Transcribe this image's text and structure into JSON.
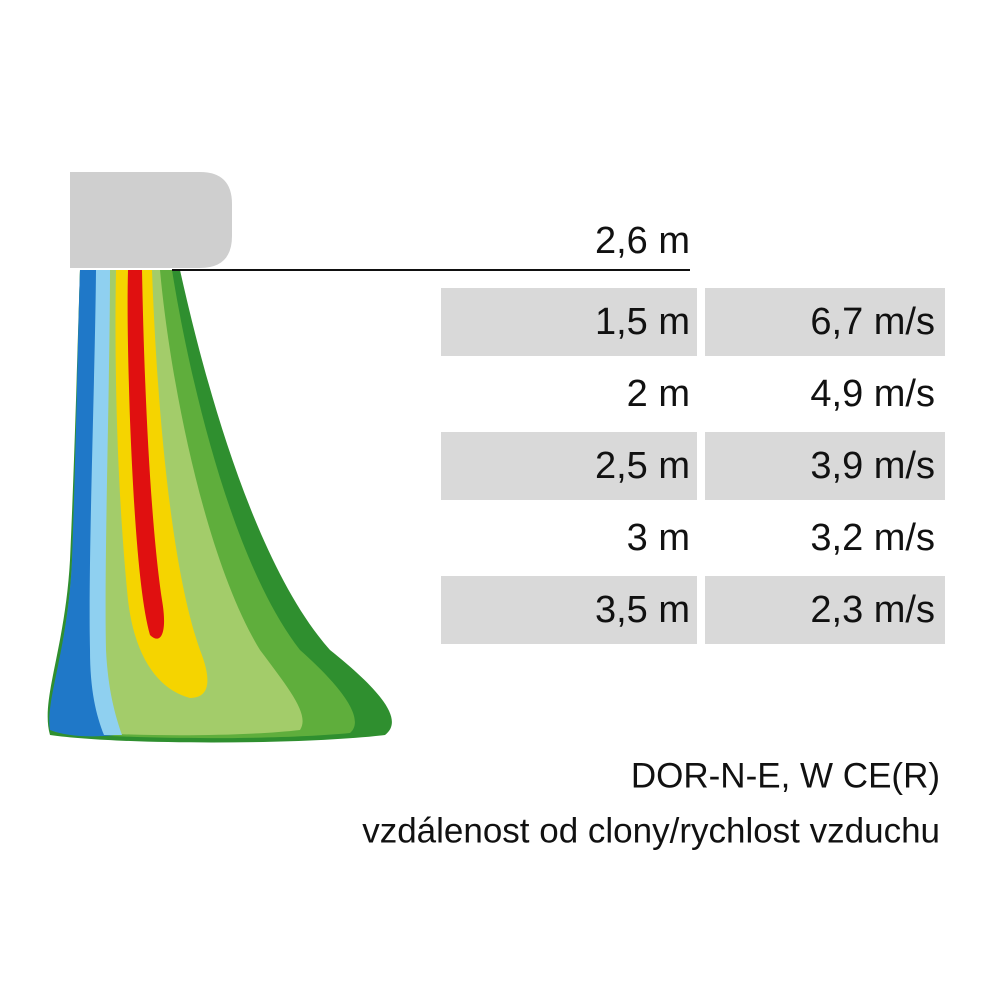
{
  "height_label": "2,6 m",
  "table": {
    "rows": [
      [
        "1,5 m",
        "6,7 m/s"
      ],
      [
        "2 m",
        "4,9 m/s"
      ],
      [
        "2,5 m",
        "3,9 m/s"
      ],
      [
        "3 m",
        "3,2 m/s"
      ],
      [
        "3,5 m",
        "2,3 m/s"
      ]
    ]
  },
  "caption": {
    "model": "DOR-N-E, W CE(R)",
    "description": "vzdálenost od clony/rychlost vzduchu"
  }
}
